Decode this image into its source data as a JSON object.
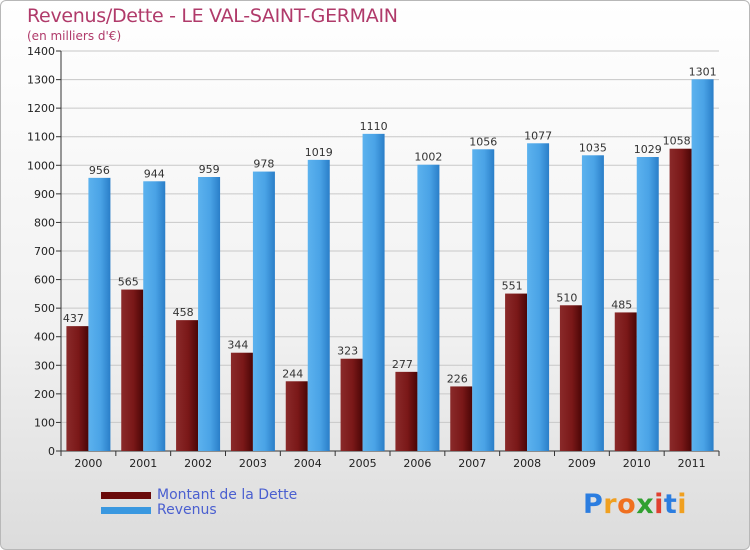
{
  "chart_data": {
    "type": "bar",
    "title": "Revenus/Dette - LE VAL-SAINT-GERMAIN",
    "subtitle": "(en milliers d'€)",
    "categories": [
      "2000",
      "2001",
      "2002",
      "2003",
      "2004",
      "2005",
      "2006",
      "2007",
      "2008",
      "2009",
      "2010",
      "2011"
    ],
    "series": [
      {
        "name": "Montant de la Dette",
        "color": "#7a1010",
        "values": [
          437,
          565,
          458,
          344,
          244,
          323,
          277,
          226,
          551,
          510,
          485,
          1058
        ]
      },
      {
        "name": "Revenus",
        "color": "#3a98e0",
        "values": [
          956,
          944,
          959,
          978,
          1019,
          1110,
          1002,
          1056,
          1077,
          1035,
          1029,
          1301
        ]
      }
    ],
    "ylim": [
      0,
      1400
    ],
    "yticks": [
      0,
      100,
      200,
      300,
      400,
      500,
      600,
      700,
      800,
      900,
      1000,
      1100,
      1200,
      1300,
      1400
    ],
    "grid": true,
    "legend_position": "bottom-left"
  },
  "logo": {
    "letters": [
      "P",
      "r",
      "o",
      "x",
      "i",
      "t",
      "i"
    ],
    "colors": [
      "#2b7de0",
      "#f0a020",
      "#f07020",
      "#30a030",
      "#e04030",
      "#2b7de0",
      "#f0a020"
    ]
  }
}
